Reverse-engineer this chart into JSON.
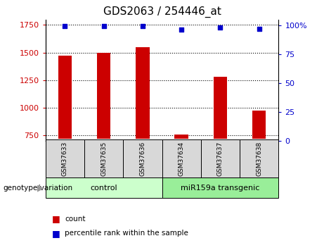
{
  "title": "GDS2063 / 254446_at",
  "samples": [
    "GSM37633",
    "GSM37635",
    "GSM37636",
    "GSM37634",
    "GSM37637",
    "GSM37638"
  ],
  "counts": [
    1470,
    1500,
    1550,
    755,
    1280,
    975
  ],
  "percentile_ranks": [
    99,
    99,
    99,
    96,
    98,
    97
  ],
  "ylim_left": [
    700,
    1800
  ],
  "ylim_right": [
    0,
    105
  ],
  "yticks_left": [
    750,
    1000,
    1250,
    1500,
    1750
  ],
  "yticks_right": [
    0,
    25,
    50,
    75,
    100
  ],
  "ytick_labels_right": [
    "0",
    "25",
    "50",
    "75",
    "100%"
  ],
  "bar_color": "#cc0000",
  "dot_color": "#0000cc",
  "bar_baseline": 720,
  "groups": [
    {
      "label": "control",
      "start": 0,
      "end": 3,
      "color": "#ccffcc"
    },
    {
      "label": "miR159a transgenic",
      "start": 3,
      "end": 6,
      "color": "#99ee99"
    }
  ],
  "group_label_text": "genotype/variation",
  "legend_count_label": "count",
  "legend_pct_label": "percentile rank within the sample",
  "tick_color_left": "#cc0000",
  "tick_color_right": "#0000cc",
  "bar_width": 0.35,
  "sample_box_color": "#d8d8d8",
  "title_fontsize": 11
}
